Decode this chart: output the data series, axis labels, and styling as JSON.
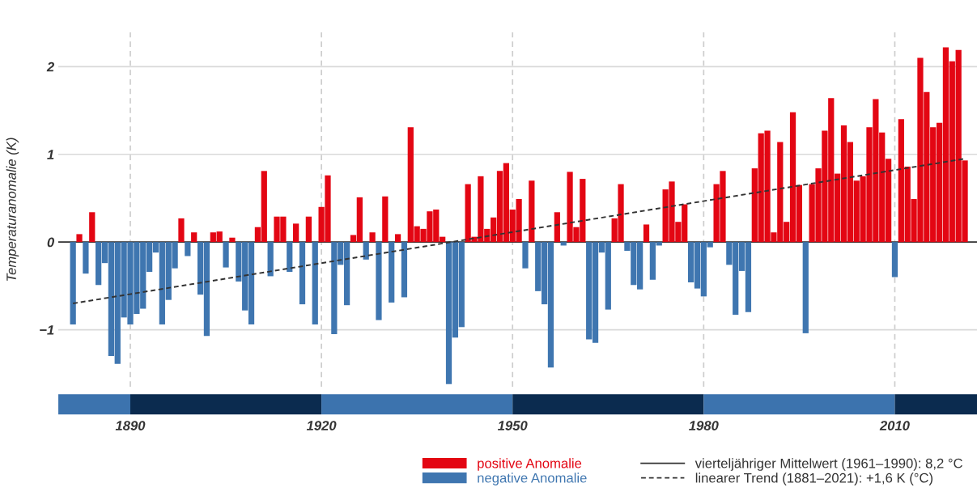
{
  "chart_data": {
    "type": "bar",
    "ylabel": "Temperaturanomalie (K)",
    "x": [
      1881,
      1882,
      1883,
      1884,
      1885,
      1886,
      1887,
      1888,
      1889,
      1890,
      1891,
      1892,
      1893,
      1894,
      1895,
      1896,
      1897,
      1898,
      1899,
      1900,
      1901,
      1902,
      1903,
      1904,
      1905,
      1906,
      1907,
      1908,
      1909,
      1910,
      1911,
      1912,
      1913,
      1914,
      1915,
      1916,
      1917,
      1918,
      1919,
      1920,
      1921,
      1922,
      1923,
      1924,
      1925,
      1926,
      1927,
      1928,
      1929,
      1930,
      1931,
      1932,
      1933,
      1934,
      1935,
      1936,
      1937,
      1938,
      1939,
      1940,
      1941,
      1942,
      1943,
      1944,
      1945,
      1946,
      1947,
      1948,
      1949,
      1950,
      1951,
      1952,
      1953,
      1954,
      1955,
      1956,
      1957,
      1958,
      1959,
      1960,
      1961,
      1962,
      1963,
      1964,
      1965,
      1966,
      1967,
      1968,
      1969,
      1970,
      1971,
      1972,
      1973,
      1974,
      1975,
      1976,
      1977,
      1978,
      1979,
      1980,
      1981,
      1982,
      1983,
      1984,
      1985,
      1986,
      1987,
      1988,
      1989,
      1990,
      1991,
      1992,
      1993,
      1994,
      1995,
      1996,
      1997,
      1998,
      1999,
      2000,
      2001,
      2002,
      2003,
      2004,
      2005,
      2006,
      2007,
      2008,
      2009,
      2010,
      2011,
      2012,
      2013,
      2014,
      2015,
      2016,
      2017,
      2018,
      2019,
      2020,
      2021
    ],
    "series": [
      {
        "name": "positive Anomalie",
        "color": "#e30613",
        "values": [
          null,
          0.09,
          null,
          0.34,
          null,
          null,
          null,
          null,
          null,
          null,
          null,
          null,
          null,
          null,
          null,
          null,
          null,
          0.27,
          null,
          0.11,
          null,
          null,
          0.11,
          0.12,
          null,
          0.05,
          null,
          null,
          null,
          0.17,
          0.81,
          null,
          0.29,
          0.29,
          null,
          0.21,
          null,
          0.29,
          null,
          0.4,
          0.76,
          null,
          null,
          null,
          0.08,
          0.51,
          null,
          0.11,
          null,
          0.52,
          null,
          0.09,
          null,
          1.31,
          0.18,
          0.15,
          0.35,
          0.37,
          0.06,
          null,
          null,
          null,
          0.66,
          0.06,
          0.75,
          0.15,
          0.28,
          0.81,
          0.9,
          0.37,
          0.49,
          null,
          0.7,
          null,
          null,
          null,
          0.34,
          null,
          0.8,
          0.17,
          0.72,
          null,
          null,
          null,
          null,
          0.27,
          0.66,
          null,
          null,
          null,
          0.2,
          null,
          null,
          0.6,
          0.69,
          0.23,
          0.43,
          null,
          null,
          null,
          null,
          0.66,
          0.81,
          null,
          null,
          null,
          null,
          0.84,
          1.24,
          1.27,
          0.11,
          1.14,
          0.23,
          1.48,
          0.65,
          null,
          0.66,
          0.84,
          1.27,
          1.64,
          0.78,
          1.33,
          1.14,
          0.7,
          0.75,
          1.31,
          1.63,
          1.25,
          0.95,
          null,
          1.4,
          0.86,
          0.49,
          2.1,
          1.71,
          1.31,
          1.36,
          2.22,
          2.06,
          2.19,
          0.93
        ]
      },
      {
        "name": "negative Anomalie",
        "color": "#3f76b0",
        "values": [
          -0.94,
          null,
          -0.36,
          null,
          -0.49,
          -0.24,
          -1.3,
          -1.39,
          -0.86,
          -0.94,
          -0.82,
          -0.76,
          -0.34,
          -0.12,
          -0.94,
          -0.66,
          -0.3,
          null,
          -0.16,
          null,
          -0.6,
          -1.07,
          null,
          null,
          -0.29,
          null,
          -0.45,
          -0.78,
          -0.94,
          null,
          null,
          -0.39,
          null,
          null,
          -0.34,
          null,
          -0.71,
          null,
          -0.94,
          null,
          null,
          -1.05,
          -0.26,
          -0.72,
          null,
          null,
          -0.2,
          null,
          -0.89,
          null,
          -0.69,
          null,
          -0.63,
          null,
          null,
          null,
          null,
          null,
          null,
          -1.62,
          -1.09,
          -0.97,
          null,
          null,
          null,
          null,
          null,
          null,
          null,
          null,
          null,
          -0.3,
          null,
          -0.56,
          -0.71,
          -1.43,
          null,
          -0.04,
          null,
          null,
          null,
          -1.11,
          -1.15,
          -0.12,
          -0.77,
          null,
          null,
          -0.1,
          -0.49,
          -0.54,
          null,
          -0.43,
          -0.04,
          null,
          null,
          null,
          null,
          -0.46,
          -0.53,
          -0.62,
          -0.06,
          null,
          null,
          -0.26,
          -0.83,
          -0.33,
          -0.8,
          null,
          null,
          null,
          null,
          null,
          null,
          null,
          null,
          -1.04,
          null,
          null,
          null,
          null,
          null,
          null,
          null,
          null,
          null,
          null,
          null,
          null,
          null,
          -0.4,
          null,
          null,
          null,
          null,
          null,
          null,
          null,
          null,
          null,
          null,
          null
        ]
      },
      {
        "name": "linearer Trend (1881–2021): +1,6 K (°C)",
        "type": "line",
        "color": "#333333",
        "line_style": "dashed",
        "x": [
          1881,
          2021
        ],
        "values": [
          -0.7,
          0.95
        ]
      }
    ],
    "ref_lines": [
      {
        "axis": "y",
        "value": 0,
        "color": "#333333",
        "line_style": "solid"
      }
    ],
    "annotations": [
      "vierteljähriger Mittelwert (1961–1990): 8,2 °C"
    ],
    "xlim": [
      1878.7,
      2022.9
    ],
    "xticks": [
      1890,
      1920,
      1950,
      1980,
      2010
    ],
    "ylim": [
      -1.65,
      2.39
    ],
    "yticks": [
      {
        "value": -1,
        "label": "−1"
      },
      0,
      1,
      2
    ],
    "grid": true,
    "legend": "bottom right"
  }
}
